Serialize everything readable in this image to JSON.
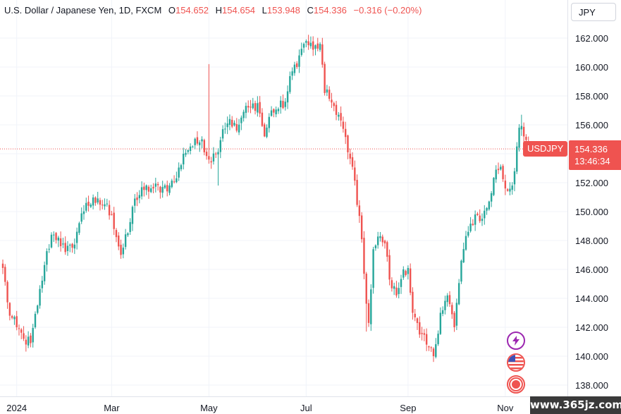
{
  "legend": {
    "title": "U.S. Dollar / Japanese Yen, 1D, FXCM",
    "open_label": "O",
    "open": "154.652",
    "high_label": "H",
    "high": "154.654",
    "low_label": "L",
    "low": "153.948",
    "close_label": "C",
    "close": "154.336",
    "change": "−0.316 (−0.20%)"
  },
  "currency_button": "JPY",
  "price_badge": {
    "symbol": "USDJPY",
    "price": "154.336",
    "countdown": "13:46:34"
  },
  "watermark": "www.365jz.com",
  "event_icons": [
    "lightning-icon",
    "us-flag-icon",
    "record-icon"
  ],
  "colors": {
    "up": "#26a69a",
    "down": "#ef5350",
    "grid": "#f0f3fa",
    "axis_text": "#131722",
    "event_purple": "#9c27b0"
  },
  "chart_data": {
    "type": "candlestick",
    "title": "U.S. Dollar / Japanese Yen, 1D, FXCM",
    "ylim": [
      137.0,
      163.5
    ],
    "y_ticks": [
      "162.000",
      "160.000",
      "158.000",
      "156.000",
      "154.000",
      "152.000",
      "150.000",
      "148.000",
      "146.000",
      "144.000",
      "142.000",
      "140.000",
      "138.000"
    ],
    "x_tick_labels": [
      "2024",
      "Mar",
      "May",
      "Jul",
      "Sep",
      "Nov"
    ],
    "x_tick_index": [
      6,
      47,
      89,
      131,
      175,
      217
    ],
    "last_price": 154.336,
    "anchors": [
      [
        0,
        146.1
      ],
      [
        3,
        142.8
      ],
      [
        6,
        142.0
      ],
      [
        9,
        141.2
      ],
      [
        12,
        140.9
      ],
      [
        15,
        143.5
      ],
      [
        18,
        146.3
      ],
      [
        21,
        148.4
      ],
      [
        24,
        148.2
      ],
      [
        27,
        147.2
      ],
      [
        30,
        147.5
      ],
      [
        33,
        149.2
      ],
      [
        36,
        150.6
      ],
      [
        40,
        150.6
      ],
      [
        44,
        150.5
      ],
      [
        47,
        149.8
      ],
      [
        51,
        147.0
      ],
      [
        54,
        148.5
      ],
      [
        57,
        150.9
      ],
      [
        61,
        151.5
      ],
      [
        65,
        151.6
      ],
      [
        69,
        151.7
      ],
      [
        72,
        151.8
      ],
      [
        75,
        152.3
      ],
      [
        78,
        154.0
      ],
      [
        81,
        154.5
      ],
      [
        84,
        154.7
      ],
      [
        86,
        155.0
      ],
      [
        89,
        153.6
      ],
      [
        92,
        154.0
      ],
      [
        95,
        155.7
      ],
      [
        98,
        156.4
      ],
      [
        101,
        155.6
      ],
      [
        104,
        156.9
      ],
      [
        107,
        157.2
      ],
      [
        110,
        157.5
      ],
      [
        113,
        155.2
      ],
      [
        116,
        157.0
      ],
      [
        119,
        157.1
      ],
      [
        122,
        157.6
      ],
      [
        125,
        159.7
      ],
      [
        128,
        160.8
      ],
      [
        131,
        161.8
      ],
      [
        134,
        161.2
      ],
      [
        137,
        161.6
      ],
      [
        139,
        158.2
      ],
      [
        141,
        157.8
      ],
      [
        143,
        157.3
      ],
      [
        146,
        156.3
      ],
      [
        149,
        154.1
      ],
      [
        151,
        153.1
      ],
      [
        154,
        149.7
      ],
      [
        156,
        145.7
      ],
      [
        158,
        142.3
      ],
      [
        160,
        147.4
      ],
      [
        163,
        148.3
      ],
      [
        165,
        147.8
      ],
      [
        167,
        145.3
      ],
      [
        170,
        144.2
      ],
      [
        173,
        146.0
      ],
      [
        175,
        146.1
      ],
      [
        177,
        143.0
      ],
      [
        180,
        141.5
      ],
      [
        183,
        140.8
      ],
      [
        186,
        140.0
      ],
      [
        189,
        143.0
      ],
      [
        192,
        144.2
      ],
      [
        195,
        142.0
      ],
      [
        198,
        146.6
      ],
      [
        201,
        148.6
      ],
      [
        204,
        149.8
      ],
      [
        207,
        149.5
      ],
      [
        210,
        150.7
      ],
      [
        213,
        152.9
      ],
      [
        215,
        153.1
      ],
      [
        217,
        151.6
      ],
      [
        220,
        151.8
      ],
      [
        223,
        155.8
      ],
      [
        225,
        155.2
      ],
      [
        227,
        154.34
      ]
    ],
    "wick_overrides": [
      {
        "i": 89,
        "high": 160.2
      },
      {
        "i": 93,
        "low": 151.8
      },
      {
        "i": 157,
        "low": 141.7
      },
      {
        "i": 186,
        "low": 139.6
      },
      {
        "i": 224,
        "high": 156.7
      }
    ]
  }
}
